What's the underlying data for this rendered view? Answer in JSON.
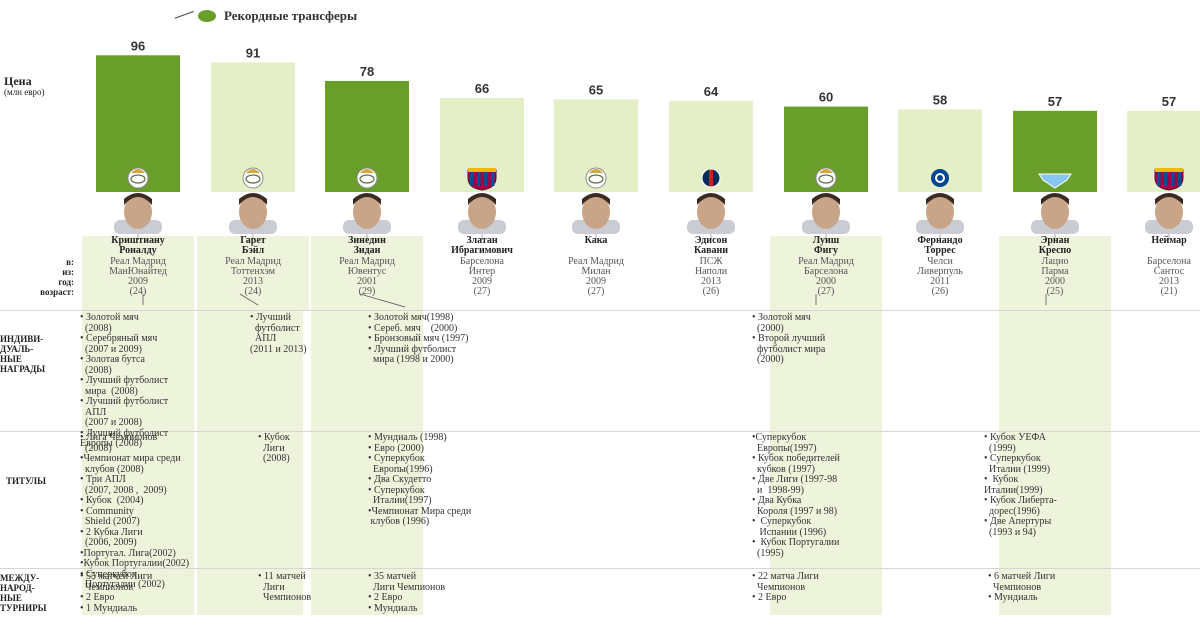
{
  "legend": {
    "label": "Рекордные трансферы"
  },
  "axis": {
    "title": "Цена",
    "unit": "(млн евро)"
  },
  "colors": {
    "dark": "#6a9e2a",
    "light": "#e4efc8"
  },
  "chart_data": {
    "type": "bar",
    "categories": [
      "Криштиану Роналду",
      "Гарет Бэйл",
      "Зинедин Зидан",
      "Златан Ибрагимович",
      "Кака",
      "Эдисон Кавани",
      "Луиш Фигу",
      "Фернандо Торрес",
      "Эрнан Креспо",
      "Неймар"
    ],
    "values": [
      96,
      91,
      78,
      66,
      65,
      64,
      60,
      58,
      57,
      57
    ],
    "shade": [
      "dark",
      "light",
      "dark",
      "light",
      "light",
      "light",
      "dark",
      "light",
      "dark",
      "light"
    ],
    "club_icons": [
      "real-madrid-badge-icon",
      "real-madrid-badge-icon",
      "real-madrid-badge-icon",
      "barcelona-badge-icon",
      "real-madrid-badge-icon",
      "psg-badge-icon",
      "real-madrid-badge-icon",
      "chelsea-badge-icon",
      "lazio-badge-icon",
      "barcelona-badge-icon"
    ],
    "ylim": [
      0,
      100
    ]
  },
  "row_labels": {
    "to": "в:",
    "from": "из:",
    "year": "год:",
    "age": "возраст:",
    "awards": [
      "ИНДИВИ-",
      "ДУАЛЬ-",
      "НЫЕ",
      "НАГРАДЫ"
    ],
    "titles": "ТИТУЛЫ",
    "intl": [
      "МЕЖДУ-",
      "НАРОД-",
      "НЫЕ",
      "ТУРНИРЫ"
    ]
  },
  "players": [
    {
      "name": "Криштиану\nРоналду",
      "to": "Реал Мадрид",
      "from": "МанЮнайтед",
      "year": "2009",
      "age": "(24)"
    },
    {
      "name": "Гарет\nБэйл",
      "to": "Реал Мадрид",
      "from": "Тоттенхэм",
      "year": "2013",
      "age": "(24)"
    },
    {
      "name": "Зинедин\nЗидан",
      "to": "Реал Мадрид",
      "from": "Ювентус",
      "year": "2001",
      "age": "(29)"
    },
    {
      "name": "Златан\nИбрагимович",
      "to": "Барселона",
      "from": "Интер",
      "year": "2009",
      "age": "(27)"
    },
    {
      "name": "Кака",
      "to": "Реал Мадрид",
      "from": "Милан",
      "year": "2009",
      "age": "(27)"
    },
    {
      "name": "Эдисон\nКавани",
      "to": "ПСЖ",
      "from": "Наполи",
      "year": "2013",
      "age": "(26)"
    },
    {
      "name": "Луиш\nФигу",
      "to": "Реал Мадрид",
      "from": "Барселона",
      "year": "2000",
      "age": "(27)"
    },
    {
      "name": "Фернандо\nТоррес",
      "to": "Челси",
      "from": "Ливерпуль",
      "year": "2011",
      "age": "(26)"
    },
    {
      "name": "Эрнан\nКреспо",
      "to": "Лацио",
      "from": "Парма",
      "year": "2000",
      "age": "(25)"
    },
    {
      "name": "Неймар",
      "to": "Барселона",
      "from": "Сантос",
      "year": "2013",
      "age": "(21)"
    }
  ],
  "awards": {
    "ronaldo": "• Золотой мяч\n  (2008)\n• Серебряный мяч\n  (2007 и 2009)\n• Золотая бутса\n  (2008)\n• Лучший футболист\n  мира  (2008)\n• Лучший футболист\n  АПЛ\n  (2007 и 2008)\n• Лучший футболист\nЕвропы (2008)",
    "bale": "• Лучший\n  футболист\n  АПЛ\n(2011 и 2013)",
    "zidane": "• Золотой мяч(1998)\n• Сереб. мяч    (2000)\n• Бронзовый мяч (1997)\n• Лучший футболист\n  мира (1998 и 2000)",
    "figo": "• Золотой мяч\n  (2000)\n• Второй лучший\n  футболист мира\n  (2000)"
  },
  "titles": {
    "ronaldo": "• Лига Чемпионов\n  (2008)\n•Чемпионат мира среди\n  клубов (2008)\n• Три АПЛ\n  (2007, 2008 ,  2009)\n• Кубок  (2004)\n• Community\n  Shield (2007)\n• 2 Кубка Лиги\n  (2006, 2009)\n•Португал. Лига(2002)\n•Кубок Португалии(2002)\n• Суперкубок\n  Португалии (2002)",
    "bale": "• Кубок\n  Лиги\n  (2008)",
    "zidane": "• Мундиаль (1998)\n• Евро (2000)\n• Суперкубок\n  Европы(1996)\n• Два Скудетто\n• Суперкубок\n  Италии(1997)\n•Чемпионат Мира среди\n клубов (1996)",
    "figo": "•Суперкубок\n  Европы(1997)\n• Кубок победителей\n  кубков (1997)\n• Две Лиги (1997-98\n  и  1998-99)\n• Два Кубка\n  Короля (1997 и 98)\n•  Суперкубок\n   Испании (1996)\n•  Кубок Португалии\n  (1995)",
    "crespo": "• Кубок УЕФА\n  (1999)\n• Суперкубок\n  Италии (1999)\n•  Кубок\nИталии(1999)\n• Кубок Либерта-\n  дорес(1996)\n• Две Апертуры\n  (1993 и 94)"
  },
  "intl": {
    "ronaldo": "• 55 матчей Лиги\n  Чемпионов\n• 2 Евро\n• 1 Мундиаль",
    "bale": "• 11 матчей\n  Лиги\n  Чемпионов",
    "zidane": "• 35 матчей\n  Лиги Чемпионов\n• 2 Евро\n• Мундиаль",
    "figo": "• 22 матча Лиги\n  Чемпионов\n• 2 Евро",
    "crespo": "• 6 матчей Лиги\n  Чемпионов\n• Мундиаль"
  }
}
